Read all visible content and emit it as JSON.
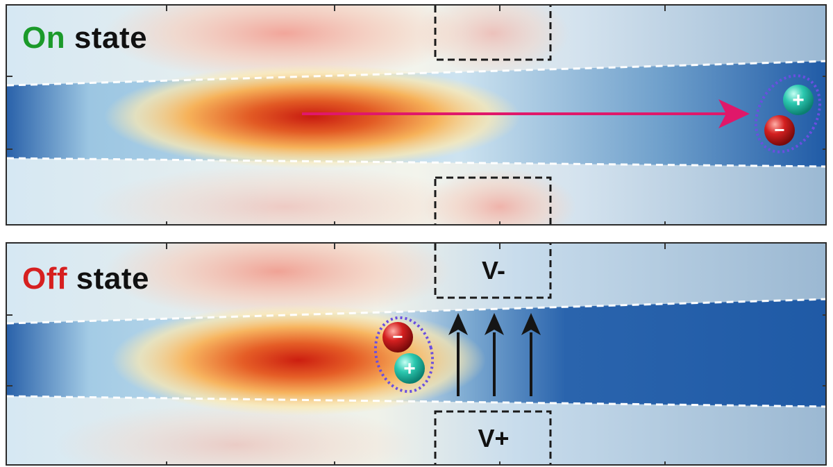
{
  "panels": {
    "on": {
      "label_word": "On",
      "label_rest": "state",
      "word_color": "#1a9a2a"
    },
    "off": {
      "label_word": "Off",
      "label_rest": "state",
      "word_color": "#d62020",
      "top_electrode": "V-",
      "bottom_electrode": "V+"
    }
  },
  "particles": {
    "positive_symbol": "+",
    "negative_symbol": "−"
  },
  "colors": {
    "arrow_on": "#e0186a",
    "arrow_off": "#151515",
    "hot": "#d42a14",
    "cold": "#1f5aa6",
    "ellipse": "#6a4fe0",
    "positive": "#1fbfa8",
    "negative": "#c81c1c"
  }
}
